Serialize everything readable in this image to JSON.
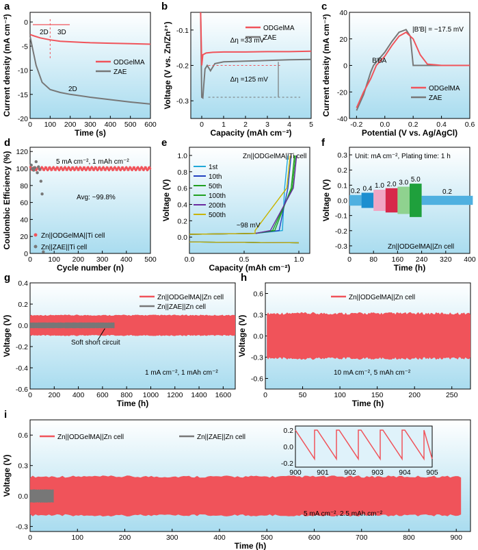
{
  "colors": {
    "red": "#f0535a",
    "gray": "#777777",
    "bg_top": "#ffffff",
    "bg_bottom": "#a9dcef"
  },
  "chart_data": [
    {
      "panel": "a",
      "type": "line",
      "xlabel": "Time (s)",
      "ylabel": "Current density (mA cm⁻²)",
      "xlim": [
        0,
        600
      ],
      "ylim": [
        -20,
        2
      ],
      "xticks": [
        "0",
        "100",
        "200",
        "300",
        "400",
        "500",
        "600"
      ],
      "yticks": [
        "0",
        "-5",
        "-10",
        "-15",
        "-20"
      ],
      "legend": [
        "ODGelMA",
        "ZAE"
      ],
      "annotations": [
        "2D",
        "3D",
        "2D"
      ],
      "series": [
        {
          "name": "ODGelMA",
          "x": [
            0,
            20,
            50,
            100,
            150,
            200,
            300,
            400,
            500,
            600
          ],
          "y": [
            -2.6,
            -2.9,
            -3.3,
            -3.7,
            -4.0,
            -4.1,
            -4.3,
            -4.4,
            -4.5,
            -4.6
          ]
        },
        {
          "name": "ZAE",
          "x": [
            0,
            10,
            30,
            60,
            100,
            150,
            200,
            300,
            400,
            500,
            600
          ],
          "y": [
            -3.0,
            -5.0,
            -9.0,
            -12.5,
            -14.0,
            -14.6,
            -15.0,
            -15.6,
            -16.1,
            -16.6,
            -17.0
          ]
        }
      ]
    },
    {
      "panel": "b",
      "type": "line",
      "xlabel": "Capacity (mAh cm⁻²)",
      "ylabel": "Voltage (V vs. Zn/Zn²⁺)",
      "xlim": [
        -0.5,
        5
      ],
      "ylim": [
        -0.35,
        -0.05
      ],
      "xticks": [
        "0",
        "1",
        "2",
        "3",
        "4",
        "5"
      ],
      "yticks": [
        "-0.1",
        "-0.2",
        "-0.3"
      ],
      "legend": [
        "ODGelMA",
        "ZAE"
      ],
      "annotations": [
        "Δη =33 mV",
        "Δη =125 mV"
      ],
      "series": [
        {
          "name": "ODGelMA",
          "x": [
            -0.05,
            0.0,
            0.05,
            0.2,
            0.5,
            1,
            2,
            3,
            4,
            5
          ],
          "y": [
            -0.05,
            -0.2,
            -0.17,
            -0.165,
            -0.163,
            -0.162,
            -0.162,
            -0.161,
            -0.161,
            -0.16
          ]
        },
        {
          "name": "ZAE",
          "x": [
            -0.05,
            0.0,
            0.05,
            0.1,
            0.15,
            0.25,
            0.4,
            0.5,
            0.6,
            1,
            2,
            3,
            4,
            5
          ],
          "y": [
            -0.05,
            -0.29,
            -0.292,
            -0.25,
            -0.21,
            -0.2,
            -0.215,
            -0.205,
            -0.195,
            -0.19,
            -0.188,
            -0.186,
            -0.184,
            -0.183
          ]
        }
      ]
    },
    {
      "panel": "c",
      "type": "line",
      "xlabel": "Potential (V vs. Ag/AgCl)",
      "ylabel": "Current density (mA cm⁻²)",
      "xlim": [
        -0.25,
        0.6
      ],
      "ylim": [
        -40,
        40
      ],
      "xticks": [
        "-0.2",
        "0.0",
        "0.2",
        "0.4",
        "0.6"
      ],
      "yticks": [
        "40",
        "20",
        "0",
        "-20",
        "-40"
      ],
      "legend": [
        "ODGelMA",
        "ZAE"
      ],
      "annotations": [
        "|B'B| = ~17.5 mV",
        "B'",
        "B",
        "A"
      ],
      "series": [
        {
          "name": "ODGelMA",
          "x": [
            -0.2,
            -0.15,
            -0.1,
            -0.06,
            0.0,
            0.05,
            0.1,
            0.15,
            0.2,
            0.25,
            0.3,
            0.4,
            0.6
          ],
          "y": [
            -32,
            -20,
            -10,
            0,
            7,
            15,
            22,
            25,
            20,
            8,
            1,
            0,
            0
          ]
        },
        {
          "name": "ZAE",
          "x": [
            -0.2,
            -0.15,
            -0.1,
            -0.08,
            -0.04,
            0.0,
            0.05,
            0.1,
            0.15,
            0.18,
            0.2,
            0.25,
            0.6
          ],
          "y": [
            -34,
            -22,
            -5,
            0,
            5,
            10,
            18,
            25,
            27,
            22,
            0,
            0,
            0
          ]
        }
      ]
    },
    {
      "panel": "d",
      "type": "scatter",
      "xlabel": "Cycle number (n)",
      "ylabel": "Coulombic Efficiency (%)",
      "xlim": [
        0,
        500
      ],
      "ylim": [
        0,
        125
      ],
      "xticks": [
        "0",
        "100",
        "200",
        "300",
        "400",
        "500"
      ],
      "yticks": [
        "0",
        "20",
        "40",
        "60",
        "80",
        "100",
        "120"
      ],
      "annotations": [
        "5 mA cm⁻², 1 mAh cm⁻²",
        "Avg: ~99.8%"
      ],
      "series": [
        {
          "name": "Zn||ODGelMA||Ti cell",
          "ce_avg": 99.8
        },
        {
          "name": "Zn||ZAE||Ti cell",
          "x": [
            5,
            10,
            15,
            20,
            25,
            30,
            35,
            40,
            45,
            50,
            55
          ],
          "y": [
            104,
            100,
            98,
            101,
            108,
            95,
            102,
            99,
            85,
            70,
            2
          ]
        }
      ]
    },
    {
      "panel": "e",
      "type": "line",
      "xlabel": "Capacity (mAh cm⁻²)",
      "ylabel": "Voltage (V)",
      "xlim": [
        0,
        1.1
      ],
      "ylim": [
        -0.2,
        1.1
      ],
      "xticks": [
        "0.0",
        "0.5",
        "1.0"
      ],
      "yticks": [
        "0.0",
        "0.2",
        "0.4",
        "0.6",
        "0.8",
        "1.0"
      ],
      "title": "Zn||ODGelMA||Ti cell",
      "annotations": [
        "~98 mV"
      ],
      "series": [
        {
          "name": "1st",
          "color": "#1fa8d8"
        },
        {
          "name": "10th",
          "color": "#2040c0"
        },
        {
          "name": "50th",
          "color": "#20a020"
        },
        {
          "name": "100th",
          "color": "#20a020"
        },
        {
          "name": "200th",
          "color": "#6a2aa0"
        },
        {
          "name": "500th",
          "color": "#c8b400"
        }
      ]
    },
    {
      "panel": "f",
      "type": "line",
      "xlabel": "Time (h)",
      "ylabel": "Voltage (V)",
      "xlim": [
        0,
        400
      ],
      "ylim": [
        -0.35,
        0.35
      ],
      "xticks": [
        "0",
        "80",
        "160",
        "240",
        "320",
        "400"
      ],
      "yticks": [
        "0.3",
        "0.2",
        "0.1",
        "0.0",
        "-0.1",
        "-0.2",
        "-0.3"
      ],
      "annotations": [
        "Unit: mA cm⁻², Plating time: 1 h",
        "Zn||ODGelMA||Zn cell"
      ],
      "blocks": [
        {
          "label": "0.2",
          "x0": 0,
          "x1": 40,
          "amp": 0.035,
          "color": "#4fb0e0"
        },
        {
          "label": "0.4",
          "x0": 40,
          "x1": 80,
          "amp": 0.05,
          "color": "#1c8fd0"
        },
        {
          "label": "1.0",
          "x0": 80,
          "x1": 120,
          "amp": 0.07,
          "color": "#f1a6c4"
        },
        {
          "label": "2.0",
          "x0": 120,
          "x1": 160,
          "amp": 0.08,
          "color": "#d7284a"
        },
        {
          "label": "3.0",
          "x0": 160,
          "x1": 200,
          "amp": 0.09,
          "color": "#8fd28f"
        },
        {
          "label": "5.0",
          "x0": 200,
          "x1": 240,
          "amp": 0.11,
          "color": "#1fa03c"
        },
        {
          "label": "0.2",
          "x0": 240,
          "x1": 410,
          "amp": 0.03,
          "color": "#4fb0e0"
        }
      ]
    },
    {
      "panel": "g",
      "type": "line",
      "xlabel": "Time (h)",
      "ylabel": "Voltage (V)",
      "xlim": [
        0,
        1700
      ],
      "ylim": [
        -0.6,
        0.4
      ],
      "xticks": [
        "0",
        "200",
        "400",
        "600",
        "800",
        "1000",
        "1200",
        "1400",
        "1600"
      ],
      "yticks": [
        "0.4",
        "0.2",
        "0.0",
        "-0.2",
        "-0.4",
        "-0.6"
      ],
      "annotations": [
        "Soft short circuit",
        "1 mA cm⁻², 1 mAh cm⁻²"
      ],
      "series": [
        {
          "name": "Zn||ODGelMA||Zn cell",
          "x0": 0,
          "x1": 1700,
          "amp": 0.09
        },
        {
          "name": "Zn||ZAE||Zn cell",
          "x0": 0,
          "x1": 700,
          "amp": 0.025
        }
      ]
    },
    {
      "panel": "h",
      "type": "line",
      "xlabel": "Time (h)",
      "ylabel": "Voltage (V)",
      "xlim": [
        0,
        275
      ],
      "ylim": [
        -0.75,
        0.75
      ],
      "xticks": [
        "0",
        "50",
        "100",
        "150",
        "200",
        "250"
      ],
      "yticks": [
        "0.6",
        "0.3",
        "0.0",
        "-0.3",
        "-0.6"
      ],
      "annotations": [
        "10 mA cm⁻², 5 mAh cm⁻²"
      ],
      "series": [
        {
          "name": "Zn||ODGelMA||Zn cell",
          "x0": 0,
          "x1": 275,
          "amp": 0.3
        }
      ]
    },
    {
      "panel": "i",
      "type": "line",
      "xlabel": "Time (h)",
      "ylabel": "Voltage (V)",
      "xlim": [
        0,
        930
      ],
      "ylim": [
        -0.35,
        0.75
      ],
      "xticks": [
        "0",
        "100",
        "200",
        "300",
        "400",
        "500",
        "600",
        "700",
        "800",
        "900"
      ],
      "yticks": [
        "0.6",
        "0.3",
        "0.0",
        "-0.3"
      ],
      "annotations": [
        "5 mA cm⁻², 2.5 mAh cm⁻²"
      ],
      "series": [
        {
          "name": "Zn||ODGelMA||Zn cell",
          "x0": 0,
          "x1": 910,
          "amp": 0.18
        },
        {
          "name": "Zn||ZAE||Zn cell",
          "x0": 0,
          "x1": 50,
          "amp": 0.06
        }
      ],
      "inset": {
        "xlim": [
          900,
          905
        ],
        "ylim": [
          -0.25,
          0.25
        ],
        "xticks": [
          "900",
          "901",
          "902",
          "903",
          "904",
          "905"
        ],
        "yticks": [
          "0.2",
          "0.0",
          "-0.2"
        ]
      }
    }
  ]
}
